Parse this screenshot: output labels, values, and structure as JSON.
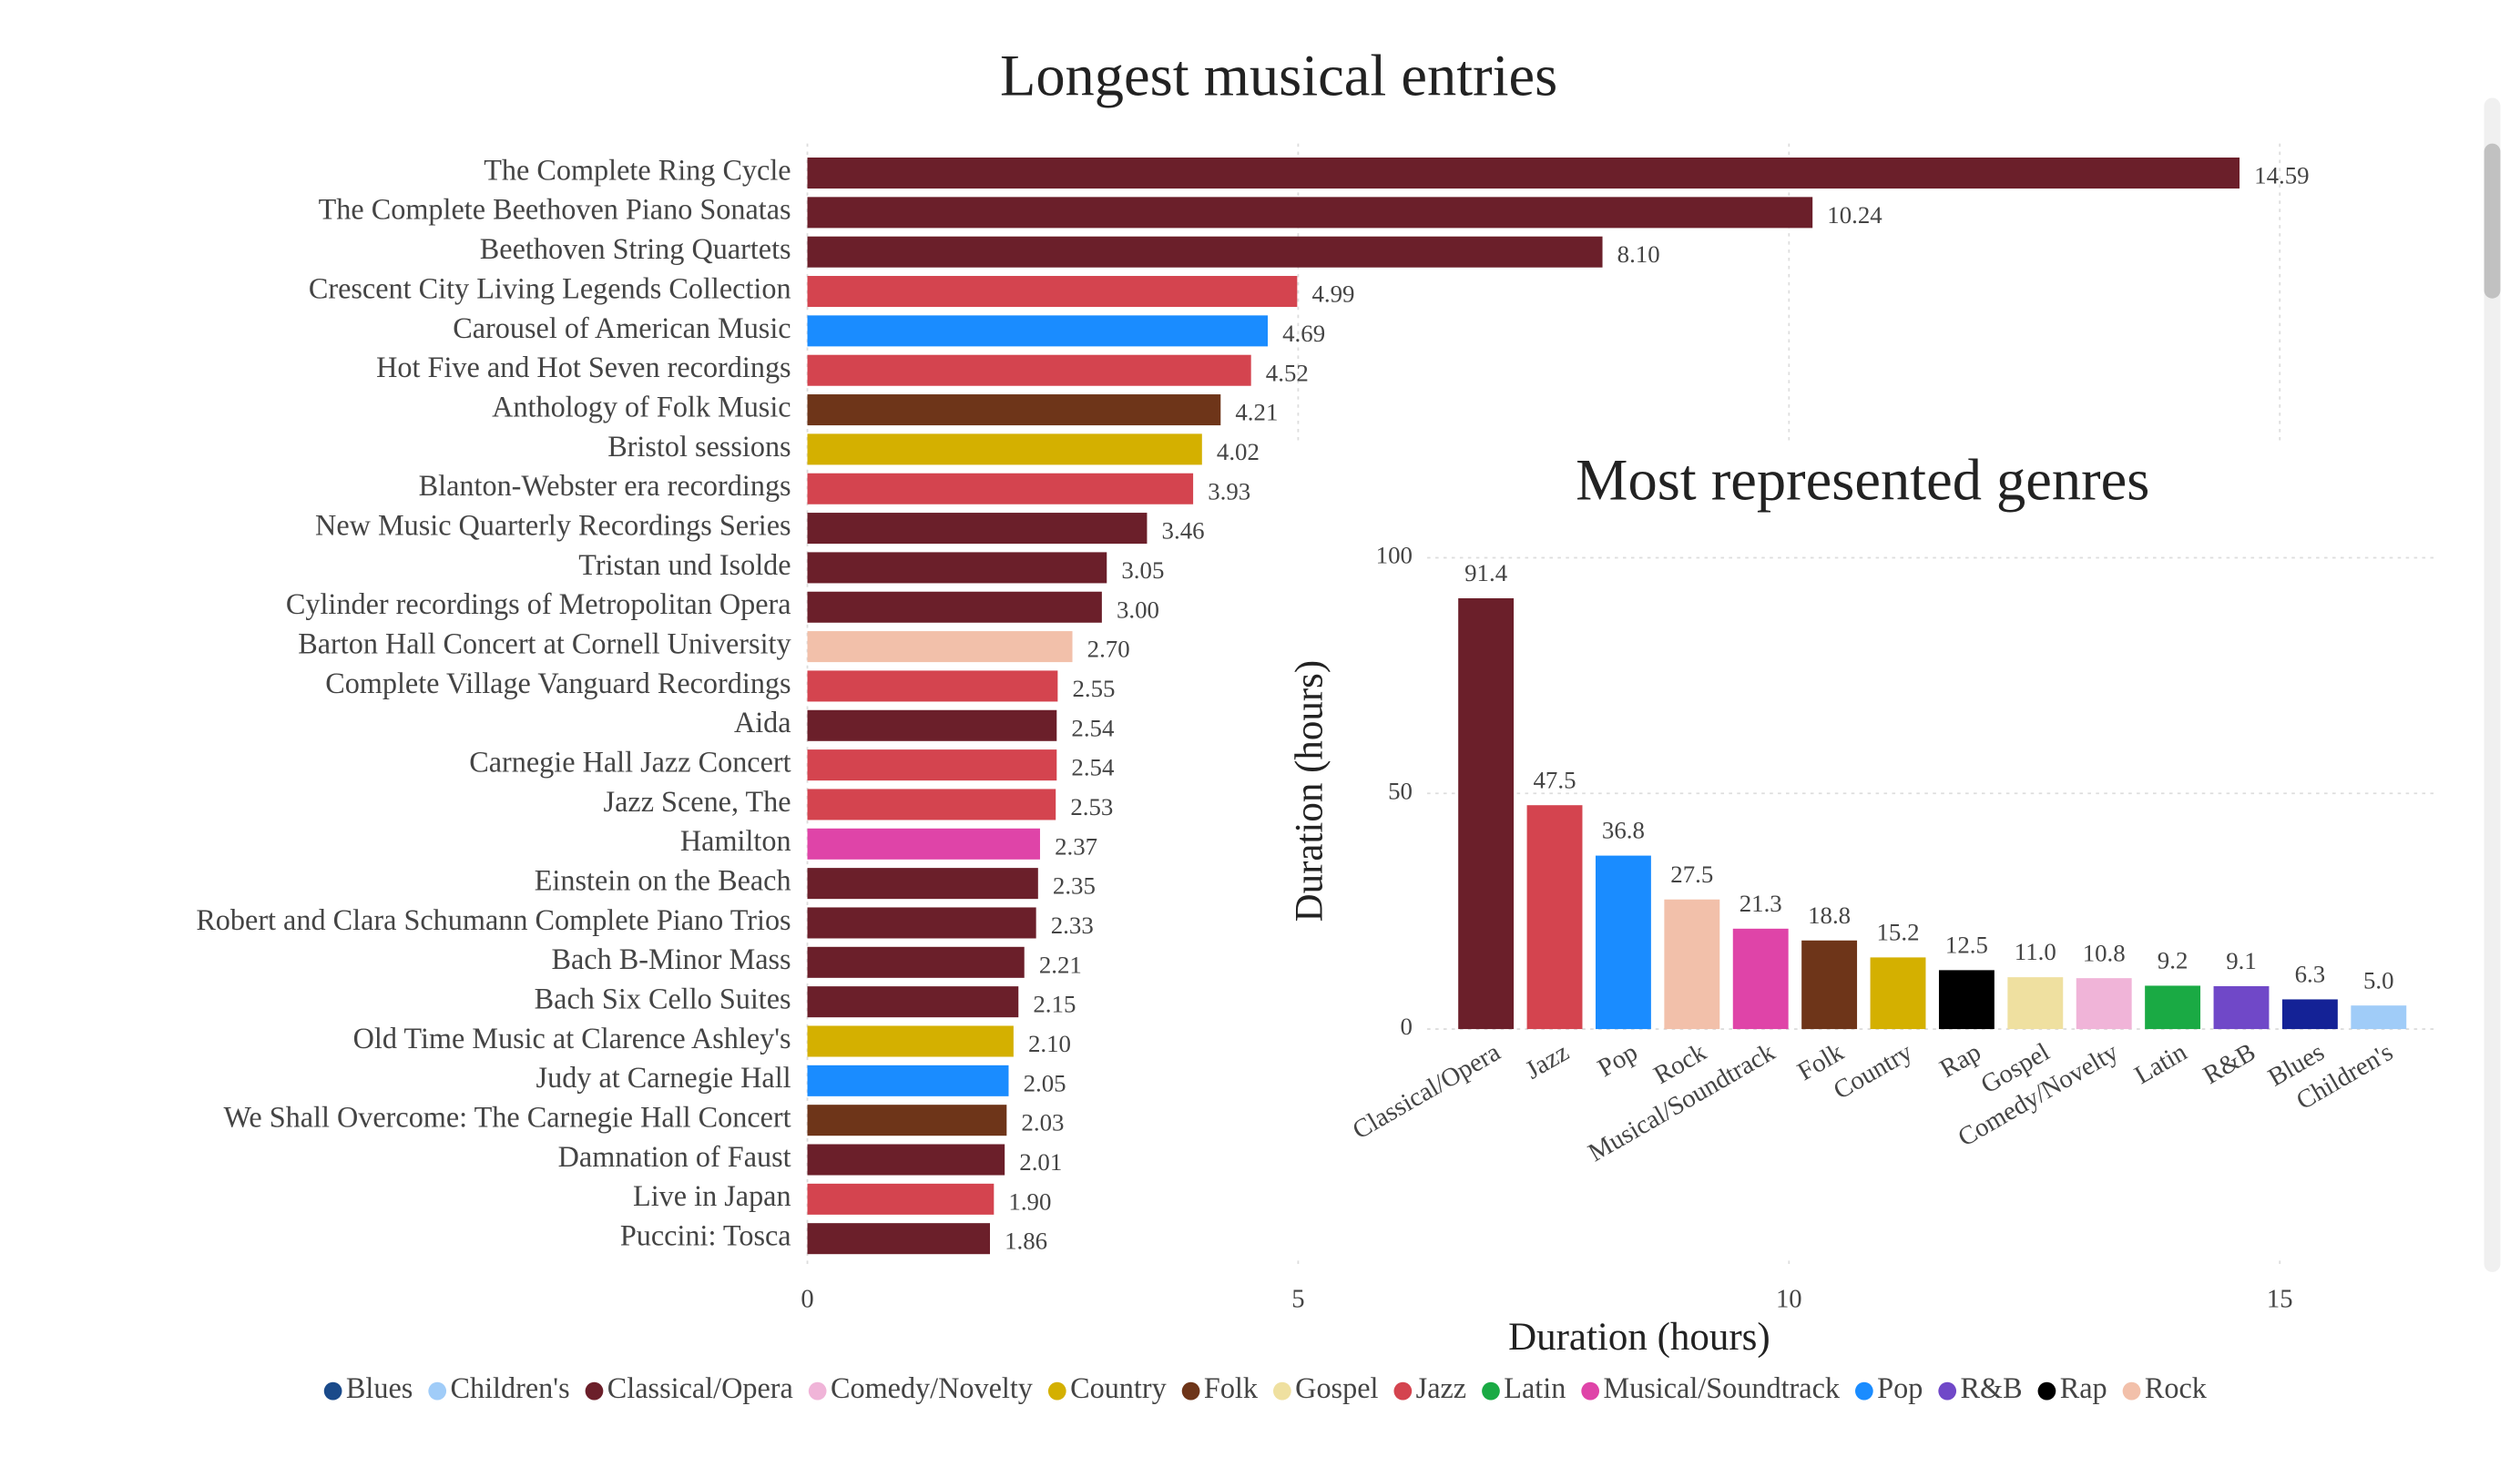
{
  "chart_data": [
    {
      "type": "hbar",
      "title": "Longest musical entries",
      "xlabel": "Duration (hours)",
      "categories": [
        "The Complete Ring Cycle",
        "The Complete Beethoven Piano Sonatas",
        "Beethoven String Quartets",
        "Crescent City Living Legends Collection",
        "Carousel of American Music",
        "Hot Five and Hot Seven recordings",
        "Anthology of Folk Music",
        "Bristol sessions",
        "Blanton-Webster era recordings",
        "New Music Quarterly Recordings Series",
        "Tristan und Isolde",
        "Cylinder recordings of Metropolitan Opera",
        "Barton Hall Concert at Cornell University",
        "Complete Village Vanguard Recordings",
        "Aida",
        "Carnegie Hall Jazz Concert",
        "Jazz Scene, The",
        "Hamilton",
        "Einstein on the Beach",
        "Robert and Clara Schumann Complete Piano Trios",
        "Bach B-Minor Mass",
        "Bach Six Cello Suites",
        "Old Time Music at Clarence Ashley's",
        "Judy at Carnegie Hall",
        "We Shall Overcome: The Carnegie Hall Concert",
        "Damnation of Faust",
        "Live in Japan",
        "Puccini: Tosca"
      ],
      "values": [
        14.59,
        10.24,
        8.1,
        4.99,
        4.69,
        4.52,
        4.21,
        4.02,
        3.93,
        3.46,
        3.05,
        3.0,
        2.7,
        2.55,
        2.54,
        2.54,
        2.53,
        2.37,
        2.35,
        2.33,
        2.21,
        2.15,
        2.1,
        2.05,
        2.03,
        2.01,
        1.9,
        1.86
      ],
      "value_labels": [
        "14.59",
        "10.24",
        "8.10",
        "4.99",
        "4.69",
        "4.52",
        "4.21",
        "4.02",
        "3.93",
        "3.46",
        "3.05",
        "3.00",
        "2.70",
        "2.55",
        "2.54",
        "2.54",
        "2.53",
        "2.37",
        "2.35",
        "2.33",
        "2.21",
        "2.15",
        "2.10",
        "2.05",
        "2.03",
        "2.01",
        "1.90",
        "1.86"
      ],
      "colors": [
        "#6b1f2a",
        "#6b1f2a",
        "#6b1f2a",
        "#d4444f",
        "#1a8cff",
        "#d4444f",
        "#6e3519",
        "#d4b000",
        "#d4444f",
        "#6b1f2a",
        "#6b1f2a",
        "#6b1f2a",
        "#f2c0aa",
        "#d4444f",
        "#6b1f2a",
        "#d4444f",
        "#d4444f",
        "#df44a8",
        "#6b1f2a",
        "#6b1f2a",
        "#6b1f2a",
        "#6b1f2a",
        "#d4b000",
        "#1a8cff",
        "#6e3519",
        "#6b1f2a",
        "#d4444f",
        "#6b1f2a"
      ],
      "xlim": [
        0,
        16.5
      ],
      "xticks": [
        0,
        5,
        10,
        15
      ],
      "grid": true,
      "legend": [
        {
          "name": "Blues",
          "color": "#1a4a8a"
        },
        {
          "name": "Children's",
          "color": "#a0ccf8"
        },
        {
          "name": "Classical/Opera",
          "color": "#6b1f2a"
        },
        {
          "name": "Comedy/Novelty",
          "color": "#f0b4d8"
        },
        {
          "name": "Country",
          "color": "#d4b000"
        },
        {
          "name": "Folk",
          "color": "#6e3519"
        },
        {
          "name": "Gospel",
          "color": "#efe0a0"
        },
        {
          "name": "Jazz",
          "color": "#d4444f"
        },
        {
          "name": "Latin",
          "color": "#1aaa44"
        },
        {
          "name": "Musical/Soundtrack",
          "color": "#df44a8"
        },
        {
          "name": "Pop",
          "color": "#1a8cff"
        },
        {
          "name": "R&B",
          "color": "#7048c8"
        },
        {
          "name": "Rap",
          "color": "#000000"
        },
        {
          "name": "Rock",
          "color": "#f2c0aa"
        }
      ]
    },
    {
      "type": "bar",
      "title": "Most represented genres",
      "ylabel": "Duration (hours)",
      "categories": [
        "Classical/Opera",
        "Jazz",
        "Pop",
        "Rock",
        "Musical/Soundtrack",
        "Folk",
        "Country",
        "Rap",
        "Gospel",
        "Comedy/Novelty",
        "Latin",
        "R&B",
        "Blues",
        "Children's"
      ],
      "values": [
        91.4,
        47.5,
        36.8,
        27.5,
        21.3,
        18.8,
        15.2,
        12.5,
        11.0,
        10.8,
        9.2,
        9.1,
        6.3,
        5.0
      ],
      "value_labels": [
        "91.4",
        "47.5",
        "36.8",
        "27.5",
        "21.3",
        "18.8",
        "15.2",
        "12.5",
        "11.0",
        "10.8",
        "9.2",
        "9.1",
        "6.3",
        "5.0"
      ],
      "colors": [
        "#6b1f2a",
        "#d4444f",
        "#1a8cff",
        "#f2c0aa",
        "#df44a8",
        "#6e3519",
        "#d4b000",
        "#000000",
        "#efe0a0",
        "#f0b4d8",
        "#1aaa44",
        "#7048c8",
        "#142296",
        "#a0ccf8"
      ],
      "ylim": [
        0,
        100
      ],
      "yticks": [
        0,
        50,
        100
      ],
      "grid": true
    }
  ]
}
